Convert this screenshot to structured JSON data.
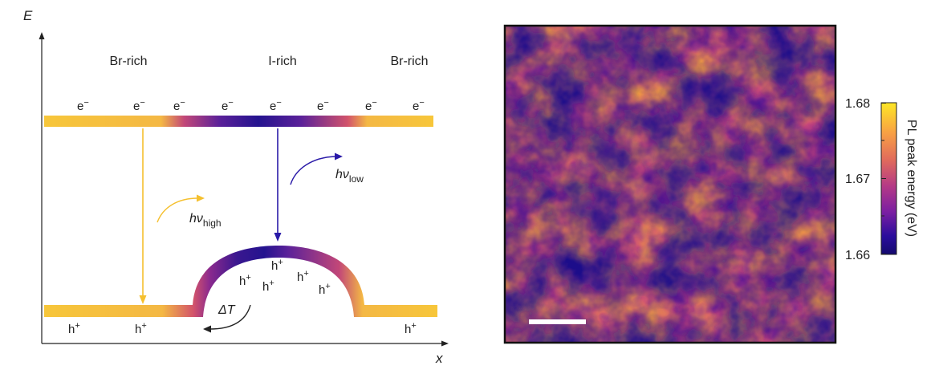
{
  "diagram": {
    "axes": {
      "y_label": "E",
      "x_label": "x"
    },
    "regions": [
      "Br-rich",
      "I-rich",
      "Br-rich"
    ],
    "electron_label": "e",
    "electron_sup": "−",
    "hole_label": "h",
    "hole_sup": "+",
    "emission_high": {
      "symbol": "hν",
      "sub": "high",
      "color": "#f5c02f"
    },
    "emission_low": {
      "symbol": "hν",
      "sub": "low",
      "color": "#2a1aa8"
    },
    "delta_t": "ΔT"
  },
  "map": {
    "colorbar": {
      "label": "PL peak energy (eV)",
      "ticks": [
        "1.68",
        "1.67",
        "1.66"
      ],
      "range": [
        1.66,
        1.68
      ],
      "colors": [
        "#fde725",
        "#f8a044",
        "#e06a5c",
        "#b43a86",
        "#7b1fa2",
        "#2a0c9c",
        "#140a6e"
      ]
    }
  }
}
